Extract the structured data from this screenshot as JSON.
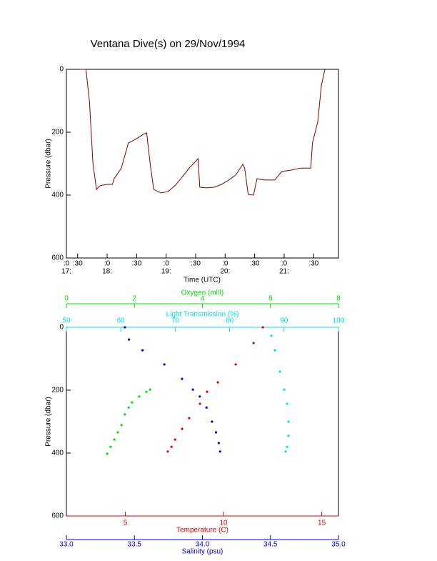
{
  "chart_data": [
    {
      "type": "line",
      "title": "Ventana Dive(s) on 29/Nov/1994",
      "xlabel": "Time (UTC)",
      "ylabel": "Pressure (dbar)",
      "color": "#800000",
      "x": [
        17.55,
        17.64,
        17.7,
        17.76,
        17.82,
        17.88,
        18.0,
        18.09,
        18.12,
        18.24,
        18.36,
        18.48,
        18.61,
        18.67,
        18.73,
        18.79,
        18.91,
        19.03,
        19.15,
        19.27,
        19.39,
        19.51,
        19.54,
        19.57,
        19.69,
        19.81,
        19.94,
        20.06,
        20.18,
        20.3,
        20.33,
        20.39,
        20.48,
        20.54,
        20.66,
        20.84,
        20.96,
        21.14,
        21.27,
        21.36,
        21.45,
        21.48,
        21.57,
        21.63,
        21.69
      ],
      "values": [
        0,
        0,
        100,
        300,
        382,
        370,
        366,
        366,
        348,
        314,
        234,
        223,
        207,
        202,
        302,
        382,
        393,
        389,
        370,
        343,
        314,
        291,
        284,
        375,
        377,
        375,
        366,
        352,
        336,
        302,
        314,
        398,
        400,
        348,
        352,
        352,
        325,
        320,
        314,
        314,
        314,
        234,
        166,
        52,
        0
      ],
      "xlim": [
        17.31,
        21.92
      ],
      "xticks": [
        {
          "value": 17.31,
          "label": ":0"
        },
        {
          "value": 17.5,
          "label": ":30"
        },
        {
          "value": 18,
          "label": ":0"
        },
        {
          "value": 18.5,
          "label": ":30"
        },
        {
          "value": 19,
          "label": ":0"
        },
        {
          "value": 19.5,
          "label": ":30"
        },
        {
          "value": 20,
          "label": ":0"
        },
        {
          "value": 20.5,
          "label": ":30"
        },
        {
          "value": 21,
          "label": ":0"
        },
        {
          "value": 21.5,
          "label": ":30"
        }
      ],
      "xticks_hours": [
        {
          "value": 17.31,
          "label": "17:"
        },
        {
          "value": 18,
          "label": "18:"
        },
        {
          "value": 19,
          "label": "19:"
        },
        {
          "value": 20,
          "label": "20:"
        },
        {
          "value": 21,
          "label": "21:"
        }
      ],
      "ylim": [
        0,
        600
      ],
      "yticks": [
        0,
        200,
        400,
        600
      ],
      "y_inverted": true
    },
    {
      "type": "scatter",
      "ylabel": "Pressure (dbar)",
      "ylim": [
        0,
        600
      ],
      "yticks": [
        0,
        200,
        400,
        600
      ],
      "y_inverted": true,
      "series": [
        {
          "name": "Oxygen (ml/l)",
          "color": "#00e000",
          "x": [
            1.2,
            1.3,
            1.41,
            1.51,
            1.62,
            1.72,
            1.83,
            1.93,
            2.14,
            2.35,
            2.46
          ],
          "values": [
            402,
            380,
            357,
            334,
            311,
            277,
            255,
            239,
            220,
            205,
            198
          ],
          "xlim": [
            0,
            8
          ],
          "xticks": [
            0,
            2,
            4,
            6,
            8
          ]
        },
        {
          "name": "Light Transmission (%)",
          "color": "#00e0e0",
          "x": [
            87.66,
            88.32,
            89.24,
            90.03,
            90.55,
            90.81,
            90.81,
            90.55,
            90.29
          ],
          "values": [
            27,
            73,
            141,
            198,
            243,
            300,
            345,
            380,
            395
          ],
          "xlim": [
            50,
            100
          ],
          "xticks": [
            50,
            60,
            70,
            80,
            90,
            100
          ]
        },
        {
          "name": "Temperature (C)",
          "color": "#e00000",
          "x": [
            12.0,
            11.53,
            10.62,
            9.71,
            9.16,
            8.8,
            8.25,
            7.89,
            7.53,
            7.35,
            7.16
          ],
          "values": [
            0,
            50,
            118,
            175,
            205,
            243,
            289,
            323,
            357,
            380,
            395
          ],
          "xlim": [
            2,
            15.85
          ],
          "xticks": [
            5,
            10,
            15
          ]
        },
        {
          "name": "Salinity (psu)",
          "color": "#0000e0",
          "x": [
            33.43,
            33.46,
            33.56,
            33.72,
            33.85,
            33.93,
            33.98,
            34.03,
            34.07,
            34.1,
            34.12,
            34.13
          ],
          "values": [
            0,
            39,
            73,
            118,
            164,
            198,
            220,
            255,
            300,
            334,
            368,
            395
          ],
          "xlim": [
            33,
            35
          ],
          "xticks": [
            {
              "value": 33,
              "label": "33.0"
            },
            33.5,
            {
              "value": 34,
              "label": "34.0"
            },
            34.5,
            {
              "value": 35,
              "label": "35.0"
            }
          ]
        }
      ]
    }
  ]
}
